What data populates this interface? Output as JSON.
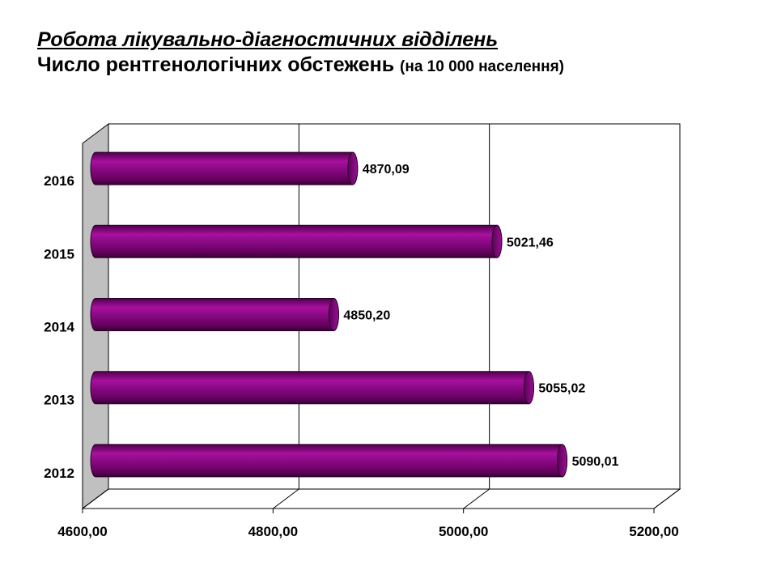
{
  "title": {
    "line1": "Робота лікувально-діагностичних відділень",
    "line2_main": "Число рентгенологічних обстежень",
    "line2_sub": "(на 10 000 населення)"
  },
  "colors": {
    "bar_fill": "#800080",
    "bar_dark": "#4a0048",
    "wall": "#c0c0c0",
    "grid": "#000000"
  },
  "chart_data": {
    "type": "bar",
    "orientation": "horizontal",
    "style": "3d-cylinder",
    "categories": [
      "2012",
      "2013",
      "2014",
      "2015",
      "2016"
    ],
    "values": [
      5090.01,
      5055.02,
      4850.2,
      5021.46,
      4870.09
    ],
    "value_labels": [
      "5090,01",
      "5055,02",
      "4850,20",
      "5021,46",
      "4870,09"
    ],
    "x_ticks": [
      4600,
      4800,
      5000,
      5200
    ],
    "x_tick_labels": [
      "4600,00",
      "4800,00",
      "5000,00",
      "5200,00"
    ],
    "xlim": [
      4600,
      5200
    ],
    "grid": true,
    "legend": "none"
  }
}
